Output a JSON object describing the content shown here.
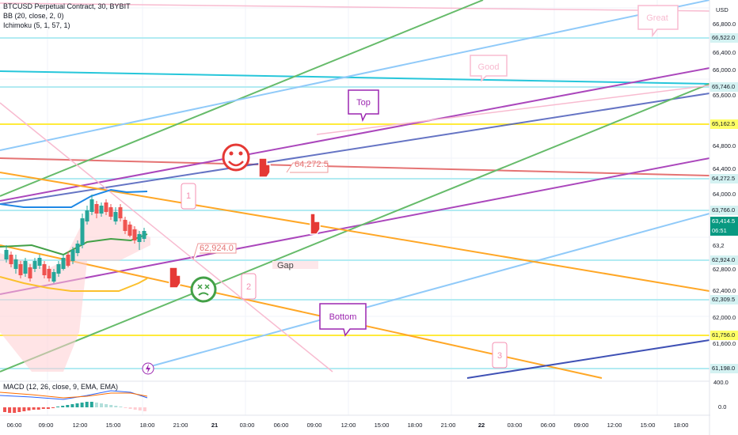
{
  "header": {
    "title": "BTCUSD Perpetual Contract, 30, BYBIT",
    "bb_label": "BB (20, close, 2, 0)",
    "ichimoku_label": "Ichimoku (5, 1, 57, 1)"
  },
  "price_axis": {
    "currency": "USD",
    "ticks": [
      "66,800.0",
      "66,400.0",
      "66,000.0",
      "65,600.0",
      "64,800.0",
      "64,400.0",
      "64,000.0",
      "63,600.0",
      "62,800.0",
      "62,400.0",
      "62,000.0",
      "61,600.0"
    ],
    "level_tags": [
      {
        "text": "66,522.0",
        "bg": "#d4f2f2"
      },
      {
        "text": "65,746.0",
        "bg": "#d4f2f2"
      },
      {
        "text": "65,162.5",
        "bg": "#ffff66"
      },
      {
        "text": "64,272.5",
        "bg": "#d4f2f2"
      },
      {
        "text": "63,766.0",
        "bg": "#d4f2f2"
      },
      {
        "text": "62,924.0",
        "bg": "#d4f2f2"
      },
      {
        "text": "62,309.5",
        "bg": "#d4f2f2"
      },
      {
        "text": "61,756.0",
        "bg": "#ffff66"
      },
      {
        "text": "61,198.0",
        "bg": "#d4f2f2"
      }
    ],
    "current_price": "63,414.5",
    "countdown": "06:51",
    "hidden_tick": "63,2"
  },
  "macd": {
    "label": "MACD (12, 26, close, 9, EMA, EMA)",
    "ticks": [
      "400.0",
      "0.0"
    ]
  },
  "time_axis": {
    "labels": [
      "06:00",
      "09:00",
      "12:00",
      "15:00",
      "18:00",
      "21:00",
      "21",
      "03:00",
      "06:00",
      "09:00",
      "12:00",
      "15:00",
      "18:00",
      "21:00",
      "22",
      "03:00",
      "06:00",
      "09:00",
      "12:00",
      "15:00",
      "18:00"
    ]
  },
  "annotations": {
    "great": "Great",
    "good": "Good",
    "top": "Top",
    "bottom": "Bottom",
    "gap": "Gap",
    "label_1": "1",
    "label_2": "2",
    "label_3": "3",
    "price_note_1": "64,272.5",
    "price_note_2": "62,924.0"
  },
  "colors": {
    "up": "#26a69a",
    "down": "#ef5350",
    "last_price": "#089981"
  }
}
